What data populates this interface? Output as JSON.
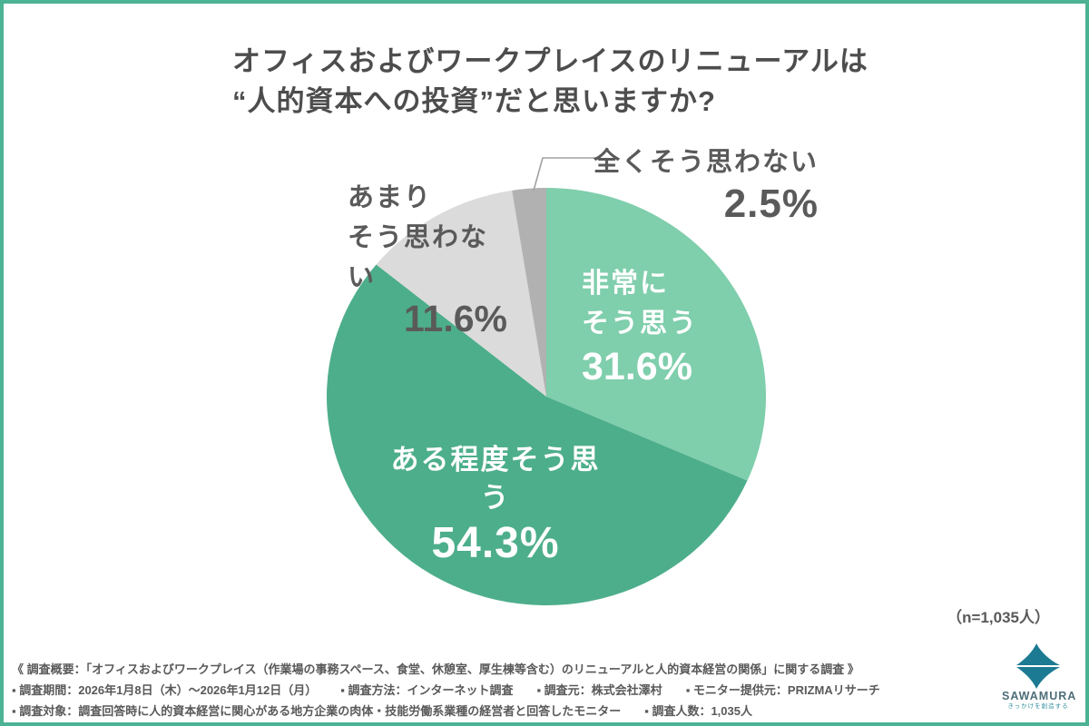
{
  "title": {
    "line1": "オフィスおよびワークプレイスのリニューアルは",
    "line2": "“人的資本への投資”だと思いますか?"
  },
  "chart_data": {
    "type": "pie",
    "title": "オフィスおよびワークプレイスのリニューアルは“人的資本への投資”だと思いますか?",
    "sample_size_note": "（n=1,035人）",
    "start_angle_deg": 0,
    "direction": "clockwise",
    "segments": [
      {
        "label": "非常にそう思う",
        "label_lines": [
          "非常に",
          "そう思う"
        ],
        "value": 31.6,
        "display": "31.6%",
        "color": "#7FCEAC",
        "label_placement": "inside"
      },
      {
        "label": "ある程度そう思う",
        "label_lines": [
          "ある程度そう思う"
        ],
        "value": 54.3,
        "display": "54.3%",
        "color": "#4DAE8B",
        "label_placement": "inside"
      },
      {
        "label": "あまりそう思わない",
        "label_lines": [
          "あまり",
          "そう思わない"
        ],
        "value": 11.6,
        "display": "11.6%",
        "color": "#DBDBDB",
        "label_placement": "outside"
      },
      {
        "label": "全くそう思わない",
        "label_lines": [
          "全くそう思わない"
        ],
        "value": 2.5,
        "display": "2.5%",
        "color": "#B1B1B1",
        "label_placement": "outside-leader"
      }
    ]
  },
  "footer": {
    "line1": "《 調査概要：「オフィスおよびワークプレイス（作業場の事務スペース、食堂、休憩室、厚生棟等含む）のリニューアルと人的資本経営の関係」に関する調査 》",
    "line2_items": [
      "▪ 調査期間：2026年1月8日（木）〜2026年1月12日（月）",
      "▪ 調査方法：インターネット調査",
      "▪ 調査元：株式会社澤村",
      "▪ モニター提供元：PRIZMAリサーチ"
    ],
    "line3_items": [
      "▪ 調査対象：調査回答時に人的資本経営に関心がある地方企業の肉体・技能労働系業種の経営者と回答したモニター",
      "▪ 調査人数：1,035人"
    ]
  },
  "logo": {
    "name": "SAWAMURA",
    "tagline": "きっかけを創造する",
    "mark_color": "#1D7A93"
  },
  "colors": {
    "frame_border": "#4CB294",
    "title_text": "#4D4D4D",
    "label_text_dark": "#5A5A5A",
    "label_text_light": "#FFFFFF",
    "leader_line": "#A0A0A0"
  }
}
